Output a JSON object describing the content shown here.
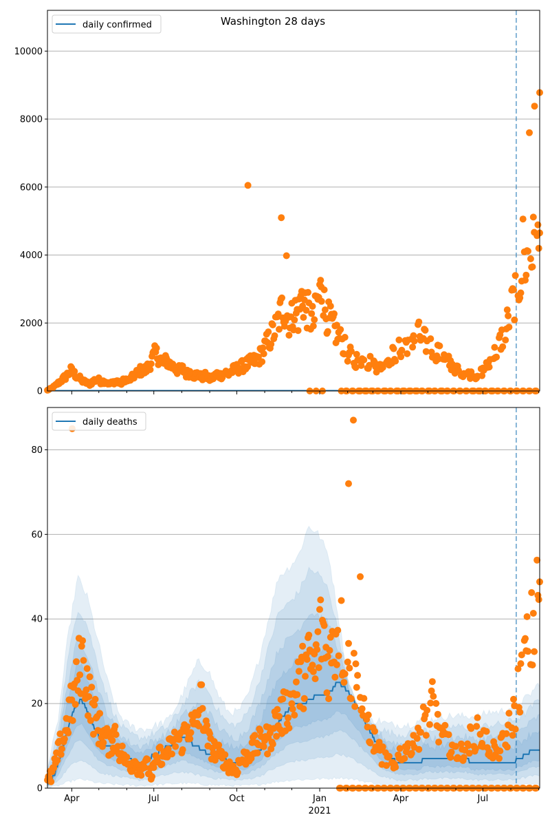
{
  "chart_data": [
    {
      "type": "scatter",
      "title": "Washington 28 days",
      "xlabel": "",
      "ylabel": "",
      "x_start_date": "2020-03-05",
      "x_end_date": "2021-09-02",
      "forecast_start_date": "2021-08-07",
      "ylim": [
        0,
        11200
      ],
      "yticks": [
        0,
        2000,
        4000,
        6000,
        8000,
        10000
      ],
      "ytick_labels": [
        "0",
        "2000",
        "4000",
        "6000",
        "8000",
        "10000"
      ],
      "grid": true,
      "legend": {
        "position": "top-left",
        "entries": [
          "daily confirmed"
        ]
      },
      "line_series": {
        "name": "daily confirmed",
        "color": "#1f77b4",
        "values_note": "flat near zero"
      },
      "points_color": "#ff7f0e",
      "weekly_points": [
        [
          0,
          20
        ],
        [
          3,
          80
        ],
        [
          6,
          150
        ],
        [
          9,
          250
        ],
        [
          12,
          350
        ],
        [
          15,
          450
        ],
        [
          18,
          600
        ],
        [
          21,
          500
        ],
        [
          24,
          400
        ],
        [
          27,
          300
        ],
        [
          30,
          250
        ],
        [
          33,
          200
        ],
        [
          36,
          300
        ],
        [
          39,
          350
        ],
        [
          42,
          250
        ],
        [
          45,
          300
        ],
        [
          48,
          200
        ],
        [
          51,
          250
        ],
        [
          54,
          300
        ],
        [
          57,
          200
        ],
        [
          60,
          350
        ],
        [
          63,
          300
        ],
        [
          66,
          400
        ],
        [
          69,
          500
        ],
        [
          72,
          600
        ],
        [
          75,
          550
        ],
        [
          78,
          700
        ],
        [
          81,
          900
        ],
        [
          84,
          1100
        ],
        [
          87,
          1000
        ],
        [
          90,
          800
        ],
        [
          93,
          900
        ],
        [
          96,
          750
        ],
        [
          99,
          700
        ],
        [
          102,
          600
        ],
        [
          105,
          650
        ],
        [
          108,
          500
        ],
        [
          111,
          550
        ],
        [
          114,
          450
        ],
        [
          117,
          500
        ],
        [
          120,
          400
        ],
        [
          123,
          450
        ],
        [
          126,
          350
        ],
        [
          129,
          400
        ],
        [
          132,
          500
        ],
        [
          135,
          450
        ],
        [
          138,
          550
        ],
        [
          141,
          500
        ],
        [
          144,
          600
        ],
        [
          147,
          650
        ],
        [
          150,
          700
        ],
        [
          153,
          750
        ],
        [
          156,
          800
        ],
        [
          159,
          850
        ],
        [
          162,
          900
        ],
        [
          165,
          1000
        ],
        [
          168,
          1200
        ],
        [
          171,
          1400
        ],
        [
          174,
          1600
        ],
        [
          177,
          1800
        ],
        [
          180,
          2100
        ],
        [
          183,
          2500
        ],
        [
          186,
          2300
        ],
        [
          189,
          2000
        ],
        [
          192,
          2400
        ],
        [
          195,
          2200
        ],
        [
          198,
          2800
        ],
        [
          201,
          2500
        ],
        [
          204,
          2200
        ],
        [
          207,
          2000
        ],
        [
          210,
          2600
        ],
        [
          213,
          3000
        ],
        [
          216,
          2400
        ],
        [
          219,
          2100
        ],
        [
          222,
          1900
        ],
        [
          225,
          1700
        ],
        [
          228,
          1500
        ],
        [
          231,
          1300
        ],
        [
          234,
          1100
        ],
        [
          237,
          1000
        ],
        [
          240,
          900
        ],
        [
          243,
          1000
        ],
        [
          246,
          850
        ],
        [
          249,
          800
        ],
        [
          252,
          900
        ],
        [
          255,
          750
        ],
        [
          258,
          700
        ],
        [
          261,
          800
        ],
        [
          264,
          900
        ],
        [
          267,
          1000
        ],
        [
          270,
          1100
        ],
        [
          273,
          1200
        ],
        [
          276,
          1300
        ],
        [
          279,
          1400
        ],
        [
          282,
          1500
        ],
        [
          285,
          1600
        ],
        [
          288,
          1700
        ],
        [
          291,
          1550
        ],
        [
          294,
          1450
        ],
        [
          297,
          1350
        ],
        [
          300,
          1250
        ],
        [
          303,
          1150
        ],
        [
          306,
          1050
        ],
        [
          309,
          950
        ],
        [
          312,
          850
        ],
        [
          315,
          750
        ],
        [
          318,
          650
        ],
        [
          321,
          600
        ],
        [
          324,
          550
        ],
        [
          327,
          500
        ],
        [
          330,
          480
        ],
        [
          333,
          450
        ],
        [
          336,
          500
        ],
        [
          339,
          600
        ],
        [
          342,
          750
        ],
        [
          345,
          900
        ],
        [
          348,
          1100
        ],
        [
          351,
          1300
        ],
        [
          354,
          1600
        ],
        [
          357,
          1900
        ],
        [
          360,
          2300
        ],
        [
          363,
          2700
        ],
        [
          366,
          3100
        ],
        [
          369,
          3500
        ],
        [
          372,
          3800
        ],
        [
          375,
          4000
        ],
        [
          378,
          4200
        ]
      ],
      "outliers": [
        [
          156,
          6050
        ],
        [
          182,
          5100
        ],
        [
          186,
          3980
        ],
        [
          213,
          3060
        ],
        [
          375,
          7600
        ],
        [
          379,
          8380
        ],
        [
          383,
          8780
        ],
        [
          370,
          5060
        ]
      ],
      "zero_points_note": "reporting-gap zeros along baseline"
    },
    {
      "type": "scatter",
      "title": "",
      "xlabel": "",
      "ylabel": "",
      "ylim": [
        0,
        90
      ],
      "yticks": [
        0,
        20,
        40,
        60,
        80
      ],
      "ytick_labels": [
        "0",
        "20",
        "40",
        "60",
        "80"
      ],
      "xticks": [
        "Apr",
        "Jul",
        "Oct",
        "Jan",
        "Apr",
        "Jul"
      ],
      "xtick_year_label": "2021",
      "grid": true,
      "legend": {
        "position": "top-left",
        "entries": [
          "daily deaths"
        ]
      },
      "line_series": {
        "name": "daily deaths",
        "color": "#1f77b4"
      },
      "points_color": "#ff7f0e",
      "median_weekly": [
        1,
        3,
        8,
        14,
        19,
        21,
        18,
        14,
        11,
        10,
        9,
        8,
        7,
        6,
        6,
        7,
        8,
        9,
        10,
        11,
        12,
        11,
        10,
        9,
        8,
        7,
        7,
        6,
        6,
        6,
        7,
        8,
        10,
        13,
        15,
        17,
        19,
        20,
        20,
        21,
        22,
        22,
        23,
        25,
        24,
        22,
        19,
        16,
        13,
        10,
        8,
        7,
        6,
        6,
        6,
        6,
        7,
        7,
        7,
        7,
        7,
        7,
        7,
        6,
        6,
        6,
        6,
        6,
        6,
        6,
        7,
        8,
        9,
        9
      ],
      "band_90_upper": [
        5,
        15,
        35,
        50,
        45,
        35,
        25,
        18,
        15,
        14,
        14,
        15,
        16,
        20,
        25,
        30,
        28,
        22,
        18,
        18,
        22,
        30,
        40,
        50,
        52,
        55,
        62,
        60,
        55,
        40,
        25,
        18,
        16,
        16,
        15,
        15,
        15,
        16,
        16,
        17,
        17,
        17,
        17,
        17,
        18,
        18,
        19,
        20,
        22,
        25
      ],
      "sample_points_deaths": [
        [
          0,
          1
        ],
        [
          2,
          3
        ],
        [
          4,
          6
        ],
        [
          6,
          10
        ],
        [
          8,
          12
        ],
        [
          10,
          17
        ],
        [
          12,
          20
        ],
        [
          14,
          24
        ],
        [
          16,
          31
        ],
        [
          18,
          28
        ],
        [
          20,
          22
        ],
        [
          22,
          18
        ],
        [
          24,
          15
        ],
        [
          26,
          13
        ],
        [
          28,
          12
        ],
        [
          30,
          10
        ],
        [
          32,
          14
        ],
        [
          34,
          9
        ],
        [
          36,
          8
        ],
        [
          38,
          6
        ],
        [
          40,
          5
        ],
        [
          42,
          7
        ],
        [
          44,
          4
        ],
        [
          46,
          6
        ],
        [
          48,
          5
        ],
        [
          50,
          3
        ],
        [
          52,
          6
        ],
        [
          54,
          8
        ],
        [
          56,
          7
        ],
        [
          58,
          9
        ],
        [
          60,
          10
        ],
        [
          62,
          12
        ],
        [
          64,
          11
        ],
        [
          66,
          13
        ],
        [
          68,
          15
        ],
        [
          70,
          14
        ],
        [
          72,
          16
        ],
        [
          74,
          21
        ],
        [
          76,
          13
        ],
        [
          78,
          10
        ],
        [
          80,
          9
        ],
        [
          82,
          8
        ],
        [
          84,
          7
        ],
        [
          86,
          6
        ],
        [
          88,
          5
        ],
        [
          90,
          4
        ],
        [
          92,
          6
        ],
        [
          94,
          7
        ],
        [
          96,
          8
        ],
        [
          98,
          9
        ],
        [
          100,
          10
        ],
        [
          102,
          11
        ],
        [
          104,
          12
        ],
        [
          106,
          11
        ],
        [
          108,
          14
        ],
        [
          110,
          16
        ],
        [
          112,
          17
        ],
        [
          114,
          18
        ],
        [
          116,
          20
        ],
        [
          118,
          21
        ],
        [
          120,
          24
        ],
        [
          122,
          26
        ],
        [
          124,
          28
        ],
        [
          126,
          30
        ],
        [
          128,
          27
        ],
        [
          130,
          34
        ],
        [
          132,
          39
        ],
        [
          134,
          29
        ],
        [
          136,
          31
        ],
        [
          138,
          35
        ],
        [
          140,
          38
        ],
        [
          142,
          33
        ],
        [
          144,
          29
        ],
        [
          146,
          27
        ],
        [
          148,
          25
        ],
        [
          150,
          20
        ],
        [
          152,
          18
        ],
        [
          154,
          15
        ],
        [
          156,
          12
        ],
        [
          158,
          10
        ],
        [
          160,
          8
        ],
        [
          162,
          7
        ],
        [
          164,
          6
        ],
        [
          166,
          5
        ],
        [
          168,
          7
        ],
        [
          170,
          9
        ],
        [
          172,
          10
        ],
        [
          174,
          11
        ],
        [
          176,
          12
        ],
        [
          178,
          13
        ],
        [
          180,
          15
        ],
        [
          182,
          17
        ],
        [
          184,
          20
        ],
        [
          186,
          18
        ],
        [
          188,
          14
        ],
        [
          190,
          12
        ],
        [
          192,
          11
        ],
        [
          194,
          10
        ],
        [
          196,
          9
        ],
        [
          198,
          8
        ],
        [
          200,
          10
        ],
        [
          202,
          11
        ],
        [
          204,
          12
        ],
        [
          206,
          13
        ],
        [
          208,
          12
        ],
        [
          210,
          11
        ],
        [
          212,
          10
        ],
        [
          214,
          9
        ],
        [
          216,
          8
        ],
        [
          218,
          10
        ],
        [
          220,
          12
        ],
        [
          222,
          15
        ],
        [
          224,
          18
        ],
        [
          226,
          24
        ],
        [
          228,
          28
        ],
        [
          230,
          33
        ],
        [
          232,
          36
        ],
        [
          234,
          40
        ],
        [
          236,
          48
        ]
      ],
      "outliers_deaths": [
        [
          21,
          85
        ],
        [
          275,
          87
        ],
        [
          270,
          72
        ],
        [
          280,
          50
        ]
      ]
    }
  ]
}
